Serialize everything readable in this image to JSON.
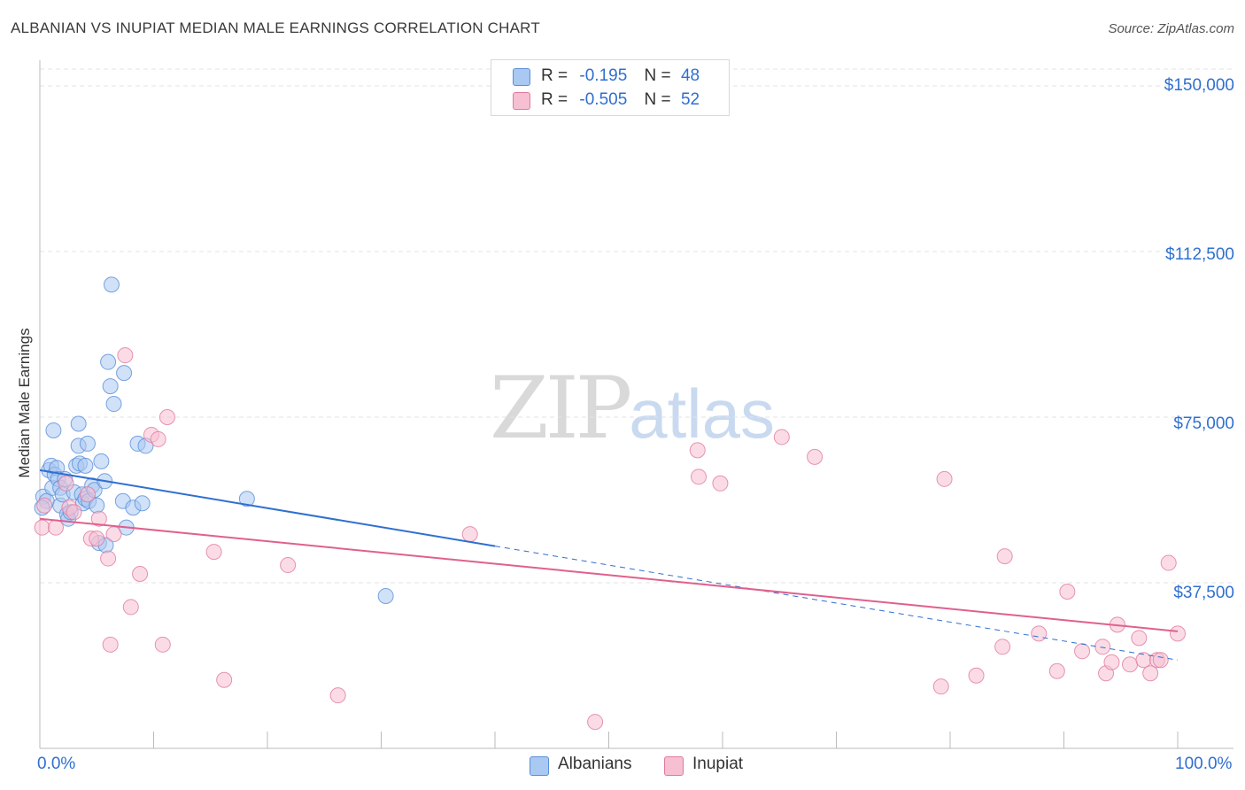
{
  "title": "ALBANIAN VS INUPIAT MEDIAN MALE EARNINGS CORRELATION CHART",
  "source": "Source: ZipAtlas.com",
  "watermark": {
    "zip": "ZIP",
    "atlas": "atlas"
  },
  "legend": {
    "r_label": "R =",
    "n_label": "N =",
    "albanians": {
      "r": "-0.195",
      "n": "48"
    },
    "inupiat": {
      "r": "-0.505",
      "n": "52"
    }
  },
  "colors": {
    "albanians_fill": "#a9c9f2",
    "albanians_stroke": "#5a8fd8",
    "albanians_line": "#2f6fd0",
    "inupiat_fill": "#f7bfd2",
    "inupiat_stroke": "#e07a9d",
    "inupiat_line": "#e0608e",
    "tick_text": "#2f6fd0"
  },
  "chart_data": {
    "type": "scatter",
    "title": "ALBANIAN VS INUPIAT MEDIAN MALE EARNINGS CORRELATION CHART",
    "xlabel": "",
    "ylabel": "Median Male Earnings",
    "xlim": [
      0,
      100
    ],
    "ylim": [
      0,
      150000
    ],
    "x_tick_labels": [
      "0.0%",
      "100.0%"
    ],
    "y_ticks": [
      37500,
      75000,
      112500,
      150000
    ],
    "y_tick_labels": [
      "$37,500",
      "$75,000",
      "$112,500",
      "$150,000"
    ],
    "series": [
      {
        "name": "Albanians",
        "trend": {
          "x0": 0,
          "y0": 63000,
          "x_solid_end": 40,
          "x1": 100,
          "y1": 20000
        },
        "points": [
          [
            0.3,
            57000
          ],
          [
            0.6,
            56000
          ],
          [
            0.8,
            63000
          ],
          [
            1.0,
            64000
          ],
          [
            1.1,
            59000
          ],
          [
            1.2,
            72000
          ],
          [
            1.3,
            62000
          ],
          [
            1.5,
            63500
          ],
          [
            1.6,
            61000
          ],
          [
            1.8,
            59000
          ],
          [
            1.8,
            55000
          ],
          [
            2.0,
            57500
          ],
          [
            2.2,
            61000
          ],
          [
            2.4,
            53000
          ],
          [
            2.5,
            52000
          ],
          [
            2.7,
            53500
          ],
          [
            3.0,
            58000
          ],
          [
            3.2,
            64000
          ],
          [
            3.4,
            68500
          ],
          [
            3.4,
            73500
          ],
          [
            3.5,
            64500
          ],
          [
            3.7,
            57500
          ],
          [
            3.8,
            55500
          ],
          [
            4.0,
            64000
          ],
          [
            4.0,
            56500
          ],
          [
            4.2,
            69000
          ],
          [
            4.3,
            56000
          ],
          [
            4.6,
            59500
          ],
          [
            4.8,
            58500
          ],
          [
            5.0,
            55000
          ],
          [
            5.2,
            46500
          ],
          [
            5.4,
            65000
          ],
          [
            5.7,
            60500
          ],
          [
            5.8,
            46000
          ],
          [
            6.0,
            87500
          ],
          [
            6.2,
            82000
          ],
          [
            6.3,
            105000
          ],
          [
            6.5,
            78000
          ],
          [
            7.3,
            56000
          ],
          [
            7.4,
            85000
          ],
          [
            7.6,
            50000
          ],
          [
            8.2,
            54500
          ],
          [
            8.6,
            69000
          ],
          [
            9.0,
            55500
          ],
          [
            9.3,
            68500
          ],
          [
            18.2,
            56500
          ],
          [
            30.4,
            34500
          ],
          [
            0.2,
            54500
          ]
        ]
      },
      {
        "name": "Inupiat",
        "trend": {
          "x0": 0,
          "y0": 52000,
          "x1": 100,
          "y1": 26500
        },
        "points": [
          [
            0.2,
            50000
          ],
          [
            0.4,
            55000
          ],
          [
            1.4,
            50000
          ],
          [
            2.3,
            60000
          ],
          [
            2.6,
            54500
          ],
          [
            3.0,
            53500
          ],
          [
            4.2,
            57500
          ],
          [
            4.5,
            47500
          ],
          [
            5.0,
            47500
          ],
          [
            5.2,
            52000
          ],
          [
            6.0,
            43000
          ],
          [
            6.2,
            23500
          ],
          [
            6.5,
            48500
          ],
          [
            7.5,
            89000
          ],
          [
            8.0,
            32000
          ],
          [
            8.8,
            39500
          ],
          [
            9.8,
            71000
          ],
          [
            10.4,
            70000
          ],
          [
            10.8,
            23500
          ],
          [
            11.2,
            75000
          ],
          [
            15.3,
            44500
          ],
          [
            16.2,
            15500
          ],
          [
            21.8,
            41500
          ],
          [
            26.2,
            12000
          ],
          [
            37.8,
            48500
          ],
          [
            48.8,
            6000
          ],
          [
            57.8,
            67500
          ],
          [
            57.9,
            61500
          ],
          [
            59.8,
            60000
          ],
          [
            65.2,
            70500
          ],
          [
            68.1,
            66000
          ],
          [
            79.2,
            14000
          ],
          [
            79.5,
            61000
          ],
          [
            82.3,
            16500
          ],
          [
            84.6,
            23000
          ],
          [
            84.8,
            43500
          ],
          [
            87.8,
            26000
          ],
          [
            89.4,
            17500
          ],
          [
            90.3,
            35500
          ],
          [
            91.6,
            22000
          ],
          [
            93.4,
            23000
          ],
          [
            93.7,
            17000
          ],
          [
            94.2,
            19500
          ],
          [
            94.7,
            28000
          ],
          [
            95.8,
            19000
          ],
          [
            96.6,
            25000
          ],
          [
            97.0,
            20000
          ],
          [
            97.6,
            17000
          ],
          [
            98.2,
            20000
          ],
          [
            98.5,
            20000
          ],
          [
            99.2,
            42000
          ],
          [
            100.0,
            26000
          ]
        ]
      }
    ]
  }
}
